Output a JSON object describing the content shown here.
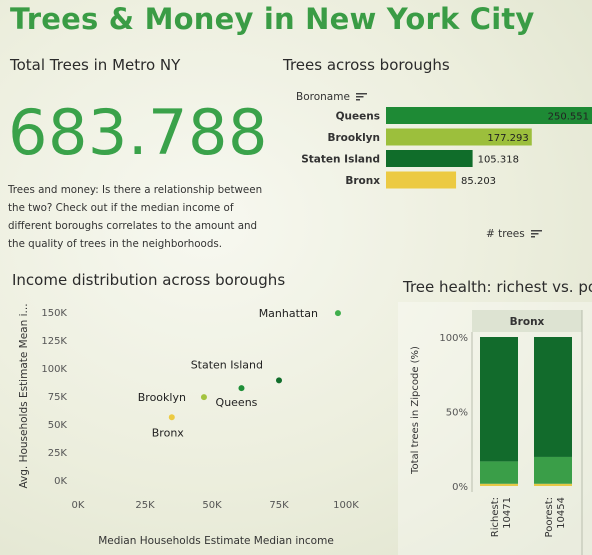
{
  "title": "Trees & Money in New York City",
  "total": {
    "heading": "Total Trees in Metro NY",
    "value": "683.788",
    "description": "Trees and money: Is there a relationship between the two? Check out if the median income of different boroughs correlates to the amount and the quality of trees in the neighborhoods."
  },
  "boroughs_chart": {
    "heading": "Trees across boroughs",
    "dimension_label": "Boroname",
    "measure_label": "# trees",
    "colors": {
      "Queens": "#1e8a35",
      "Brooklyn": "#9cbf3c",
      "Staten Island": "#106d2a",
      "Bronx": "#ecca42"
    }
  },
  "income_chart": {
    "heading": "Income distribution across boroughs",
    "colors": {
      "Manhattan": "#3fae4c",
      "Staten Island": "#116d2b",
      "Queens": "#1f8f38",
      "Brooklyn": "#a3c33f",
      "Bronx": "#ecca42"
    }
  },
  "health_chart": {
    "heading": "Tree health: richest vs. po",
    "panel_label": "Bronx",
    "colors": {
      "dark": "#126b2c",
      "mid": "#3a9e48",
      "light": "#e7c846"
    }
  },
  "chart_data": [
    {
      "type": "bar",
      "orientation": "horizontal",
      "categories": [
        "Queens",
        "Brooklyn",
        "Staten Island",
        "Bronx"
      ],
      "values": [
        250551,
        177293,
        105318,
        85203
      ],
      "value_labels": [
        "250.551",
        "177.293",
        "105.318",
        "85.203"
      ],
      "xlim": [
        0,
        250551
      ]
    },
    {
      "type": "scatter",
      "xlabel": "Median Households Estimate Median income",
      "ylabel": "Avg. Households Estimate Mean i...",
      "xlim": [
        0,
        100000
      ],
      "ylim": [
        0,
        150000
      ],
      "x_ticks": [
        0,
        25000,
        50000,
        75000,
        100000
      ],
      "x_tick_labels": [
        "0K",
        "25K",
        "50K",
        "75K",
        "100K"
      ],
      "y_ticks": [
        0,
        25000,
        50000,
        75000,
        100000,
        125000,
        150000
      ],
      "y_tick_labels": [
        "0K",
        "25K",
        "50K",
        "75K",
        "100K",
        "125K",
        "150K"
      ],
      "points": [
        {
          "label": "Manhattan",
          "x": 97000,
          "y": 149000
        },
        {
          "label": "Staten Island",
          "x": 75000,
          "y": 89000
        },
        {
          "label": "Queens",
          "x": 61000,
          "y": 82000
        },
        {
          "label": "Brooklyn",
          "x": 47000,
          "y": 74000
        },
        {
          "label": "Bronx",
          "x": 35000,
          "y": 56000
        }
      ]
    },
    {
      "type": "bar",
      "stacked": true,
      "ylabel": "Total trees in Zipcode (%)",
      "ylim": [
        0,
        100
      ],
      "y_ticks": [
        0,
        50,
        100
      ],
      "y_tick_labels": [
        "0%",
        "50%",
        "100%"
      ],
      "categories": [
        "Richest: 10471",
        "Poorest: 10454"
      ],
      "series": [
        {
          "values": [
            1.5,
            1.5
          ]
        },
        {
          "values": [
            15,
            18
          ]
        },
        {
          "values": [
            83.5,
            80.5
          ]
        }
      ]
    }
  ]
}
